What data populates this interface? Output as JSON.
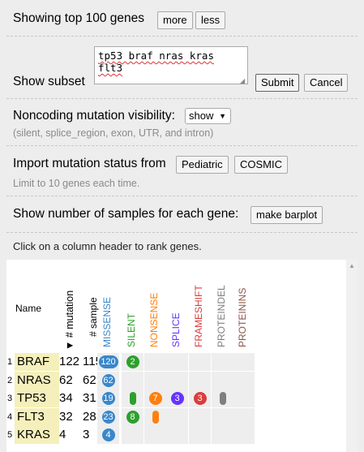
{
  "top_genes": {
    "label": "Showing top 100 genes",
    "more_label": "more",
    "less_label": "less"
  },
  "subset": {
    "label": "Show subset",
    "textarea_line1": "tp53 braf nras kras",
    "textarea_line2": "flt3",
    "submit_label": "Submit",
    "cancel_label": "Cancel"
  },
  "noncoding": {
    "label": "Noncoding mutation visibility:",
    "selected": "show",
    "note": "(silent, splice_region, exon, UTR, and intron)"
  },
  "import": {
    "label": "Import mutation status from",
    "pediatric_label": "Pediatric",
    "cosmic_label": "COSMIC",
    "note": "Limit to 10 genes each time."
  },
  "samples": {
    "label": "Show number of samples for each gene:",
    "button_label": "make barplot"
  },
  "rank_hint": "Click on a column header to rank genes.",
  "colors": {
    "missense": "#3987cc",
    "silent": "#2ca02c",
    "nonsense": "#ff7f0e",
    "splice": "#6633ff",
    "frameshift": "#db3d3d",
    "proteindel": "#7f7f7f",
    "proteinins": "#8c564b",
    "gene_highlight": "#f5f0bb"
  },
  "table": {
    "name_header": "Name",
    "mutation_header": "▼ # mutation",
    "sample_header": "# sample",
    "class_headers": [
      "MISSENSE",
      "SILENT",
      "NONSENSE",
      "SPLICE",
      "FRAMESHIFT",
      "PROTEINDEL",
      "PROTEININS"
    ],
    "class_keys": [
      "missense",
      "silent",
      "nonsense",
      "splice",
      "frameshift",
      "proteindel",
      "proteinins"
    ],
    "rows": [
      {
        "rank": "1",
        "gene": "BRAF",
        "mutations": "122",
        "samples": "115",
        "counts": {
          "missense": "120",
          "silent": "2"
        }
      },
      {
        "rank": "2",
        "gene": "NRAS",
        "mutations": "62",
        "samples": "62",
        "counts": {
          "missense": "62"
        }
      },
      {
        "rank": "3",
        "gene": "TP53",
        "mutations": "34",
        "samples": "31",
        "counts": {
          "missense": "19",
          "silent": "",
          "nonsense": "7",
          "splice": "3",
          "frameshift": "3",
          "proteindel": ""
        }
      },
      {
        "rank": "4",
        "gene": "FLT3",
        "mutations": "32",
        "samples": "28",
        "counts": {
          "missense": "23",
          "silent": "8",
          "nonsense": ""
        }
      },
      {
        "rank": "5",
        "gene": "KRAS",
        "mutations": "4",
        "samples": "3",
        "counts": {
          "missense": "4"
        }
      }
    ]
  }
}
